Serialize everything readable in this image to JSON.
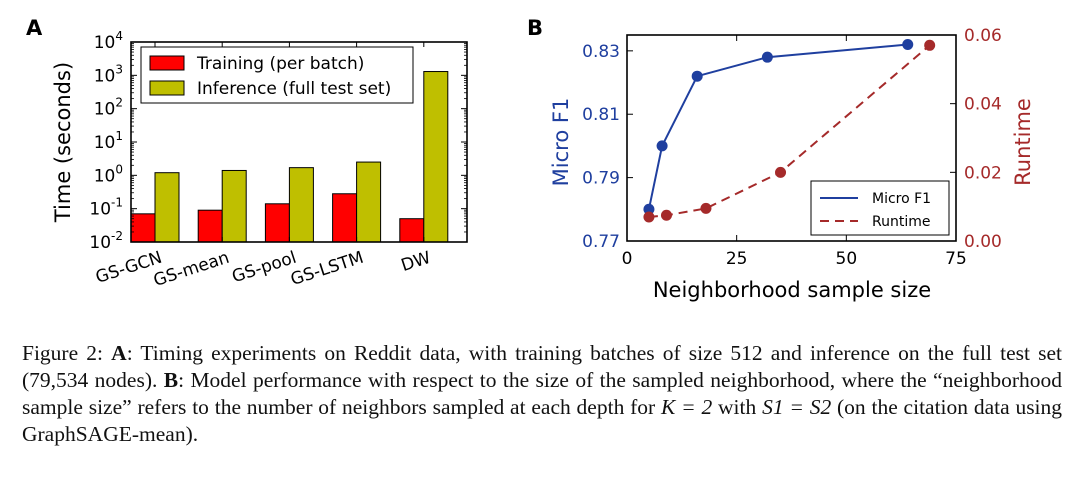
{
  "chart_data": [
    {
      "panel": "A",
      "type": "bar",
      "yscale": "log",
      "ylim": [
        0.01,
        10000
      ],
      "ylabel": "Time (seconds)",
      "yticks": [
        "10-2",
        "10-1",
        "100",
        "101",
        "102",
        "103",
        "104"
      ],
      "categories": [
        "GS-GCN",
        "GS-mean",
        "GS-pool",
        "GS-LSTM",
        "DW"
      ],
      "series": [
        {
          "name": "Training (per batch)",
          "color": "#ff0000",
          "values": [
            0.07,
            0.09,
            0.14,
            0.28,
            0.05
          ]
        },
        {
          "name": "Inference (full test set)",
          "color": "#bfbf00",
          "values": [
            1.2,
            1.4,
            1.7,
            2.5,
            1300
          ]
        }
      ],
      "legend": "top-left"
    },
    {
      "panel": "B",
      "type": "line",
      "xlabel": "Neighborhood sample size",
      "xlim": [
        0,
        75
      ],
      "xticks": [
        "0",
        "25",
        "50",
        "75"
      ],
      "y_left": {
        "label": "Micro F1",
        "ylim": [
          0.77,
          0.835
        ],
        "ticks": [
          "0.77",
          "0.79",
          "0.81",
          "0.83"
        ],
        "color": "#1f3f9f"
      },
      "y_right": {
        "label": "Runtime",
        "ylim": [
          0.0,
          0.06
        ],
        "ticks": [
          "0.00",
          "0.02",
          "0.04",
          "0.06"
        ],
        "color": "#a52a2a"
      },
      "series": [
        {
          "name": "Micro F1",
          "axis": "left",
          "style": "solid",
          "color": "#1f3f9f",
          "x": [
            5,
            8,
            16,
            32,
            64
          ],
          "y": [
            0.78,
            0.8,
            0.822,
            0.828,
            0.832
          ]
        },
        {
          "name": "Runtime",
          "axis": "right",
          "style": "dashed",
          "color": "#a52a2a",
          "x": [
            5,
            9,
            18,
            35,
            69
          ],
          "y": [
            0.007,
            0.0075,
            0.0095,
            0.02,
            0.057
          ]
        }
      ],
      "legend": "bottom-right"
    }
  ],
  "labels": {
    "panel_a": "A",
    "panel_b": "B"
  },
  "caption": {
    "figure_label": "Figure 2:",
    "a_label": "A",
    "a_text": ": Timing experiments on Reddit data, with training batches of size 512 and inference on the full test set (79,534 nodes).",
    "b_label": "B",
    "b_text_1": ": Model performance with respect to the size of the sampled neighborhood, where the “neighborhood sample size” refers to the number of neighbors sampled at each depth for",
    "b_text_2": "with",
    "b_text_3": "(on the citation data using GraphSAGE-mean).",
    "k_eq": "K = 2",
    "s_eq": "S1 = S2"
  }
}
